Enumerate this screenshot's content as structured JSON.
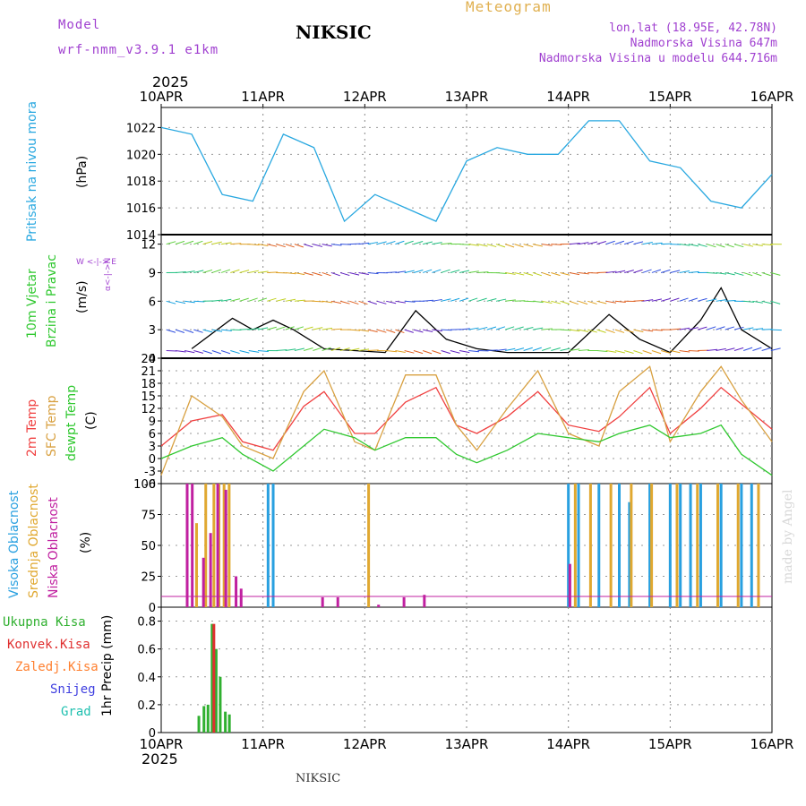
{
  "header": {
    "model_label": "Model",
    "model_value": "wrf-nmm_v3.9.1 e1km",
    "title": "NIKSIC",
    "subtitle": "Meteogram",
    "coords": "lon,lat (18.95E, 42.78N)",
    "elevation": "Nadmorska Visina 647m",
    "model_elevation": "Nadmorska Visina u modelu 644.716m",
    "year_top": "2025",
    "year_bottom": "2025",
    "footer_station": "NIKSIC",
    "watermark": "made by Angel"
  },
  "time_axis": {
    "labels": [
      "10APR",
      "11APR",
      "12APR",
      "13APR",
      "14APR",
      "15APR",
      "16APR"
    ]
  },
  "panel_labels": {
    "pressure": {
      "name": "Pritisak na nivou mora",
      "unit": "(hPa)"
    },
    "wind": {
      "name1": "10m Vjetar",
      "name2": "Brzina i Pravac",
      "unit": "(m/s)",
      "compass_ns": "α<-|->N",
      "compass_we": "W <-|-> E"
    },
    "temp": {
      "t2m": "2m Temp",
      "sfc": "SFC Temp",
      "dew": "dewpt Temp",
      "unit": "(C)"
    },
    "cloud": {
      "high": "Visoka Oblacnost",
      "mid": "Srednja Oblacnost",
      "low": "Niska Oblacnost",
      "unit": "(%)"
    },
    "precip": {
      "total": "Ukupna Kisa",
      "conv": "Konvek.Kisa",
      "frozen": "Zaledj.Kisa",
      "snow": "Snijeg",
      "hail": "Grad",
      "unit": "1hr Precip (mm)"
    }
  },
  "colors": {
    "pressure": "#29a8e0",
    "t2m": "#f04040",
    "sfc": "#d8a040",
    "dew": "#30c830",
    "cloud_high": "#29a0e0",
    "cloud_mid": "#e0a830",
    "cloud_low": "#c020a0",
    "precip_total": "#30b030",
    "precip_conv": "#e03030",
    "precip_frozen": "#ff8030",
    "precip_snow": "#4040e0",
    "precip_hail": "#20c0b0",
    "title_sub": "#e0b050",
    "meta": "#a040d0"
  },
  "chart_data": [
    {
      "type": "line",
      "panel": "pressure",
      "xlabel": "",
      "ylabel": "(hPa)",
      "ylim": [
        1014,
        1023.5
      ],
      "yticks": [
        1014,
        1016,
        1018,
        1020,
        1022
      ],
      "series": [
        {
          "name": "Pritisak na nivou mora",
          "x": [
            0,
            0.3,
            0.6,
            0.9,
            1.2,
            1.5,
            1.8,
            2.1,
            2.4,
            2.7,
            3.0,
            3.3,
            3.6,
            3.9,
            4.2,
            4.5,
            4.8,
            5.1,
            5.4,
            5.7,
            6.0
          ],
          "values": [
            1022,
            1021.5,
            1017,
            1016.5,
            1021.5,
            1020.5,
            1015,
            1017,
            1016,
            1015,
            1019.5,
            1020.5,
            1020,
            1020,
            1022.5,
            1022.5,
            1019.5,
            1019,
            1016.5,
            1016,
            1018.5
          ]
        }
      ]
    },
    {
      "type": "line",
      "panel": "wind",
      "ylabel": "(m/s)",
      "ylim": [
        0,
        13
      ],
      "yticks": [
        0,
        3,
        6,
        9,
        12
      ],
      "series": [
        {
          "name": "wind speed",
          "x": [
            0.3,
            0.7,
            0.9,
            1.1,
            1.3,
            1.6,
            1.9,
            2.2,
            2.5,
            2.8,
            3.1,
            3.4,
            3.7,
            4.0,
            4.4,
            4.7,
            5.0,
            5.3,
            5.5,
            5.7,
            6.0
          ],
          "values": [
            1,
            4.2,
            3,
            4,
            3,
            1,
            0.8,
            0.6,
            5,
            2,
            1,
            0.6,
            0.6,
            0.6,
            4.6,
            2,
            0.6,
            4,
            7.4,
            3,
            1
          ]
        }
      ]
    },
    {
      "type": "line",
      "panel": "temperature",
      "ylabel": "(C)",
      "ylim": [
        -6,
        24
      ],
      "yticks": [
        -6,
        -3,
        0,
        3,
        6,
        9,
        12,
        15,
        18,
        21,
        24
      ],
      "x": [
        0,
        0.3,
        0.6,
        0.8,
        1.1,
        1.4,
        1.6,
        1.9,
        2.1,
        2.4,
        2.7,
        2.9,
        3.1,
        3.4,
        3.7,
        4.0,
        4.3,
        4.5,
        4.8,
        5.0,
        5.3,
        5.5,
        5.7,
        6.0
      ],
      "series": [
        {
          "name": "2m Temp",
          "values": [
            3,
            9,
            10.5,
            4,
            2,
            12.5,
            16,
            6,
            6,
            13.5,
            17,
            8,
            6,
            10,
            16,
            8,
            6.5,
            10,
            17,
            6,
            12,
            17,
            13,
            7
          ]
        },
        {
          "name": "SFC Temp",
          "values": [
            -4,
            15,
            10,
            3,
            0,
            16,
            21,
            4,
            2,
            20,
            20,
            8,
            2,
            12,
            21,
            6,
            3,
            16,
            22,
            4,
            16,
            22,
            14,
            4
          ]
        },
        {
          "name": "dewpt Temp",
          "values": [
            0,
            3,
            5,
            1,
            -3,
            3,
            7,
            5,
            2,
            5,
            5,
            1,
            -1,
            2,
            6,
            5,
            4,
            6,
            8,
            5,
            6,
            8,
            1,
            -4
          ]
        }
      ]
    },
    {
      "type": "bar",
      "panel": "cloud",
      "ylabel": "(%)",
      "ylim": [
        0,
        100
      ],
      "yticks": [
        0,
        25,
        50,
        75,
        100
      ],
      "series": [
        {
          "name": "Visoka Oblacnost",
          "x": [
            1.05,
            1.1,
            4.0,
            4.1,
            4.3,
            4.5,
            4.6,
            4.8,
            5.0,
            5.1,
            5.2,
            5.3,
            5.5,
            5.7,
            5.8
          ],
          "values": [
            100,
            100,
            100,
            100,
            100,
            100,
            85,
            100,
            100,
            100,
            100,
            100,
            100,
            100,
            100
          ]
        },
        {
          "name": "Srednja Oblacnost",
          "x": [
            0.33,
            0.42,
            0.5,
            0.55,
            0.6,
            0.65,
            2.02,
            4.05,
            4.2,
            4.4,
            4.6,
            4.8,
            5.05,
            5.25,
            5.45,
            5.65,
            5.85
          ],
          "values": [
            68,
            100,
            100,
            100,
            100,
            100,
            100,
            100,
            100,
            100,
            100,
            100,
            100,
            100,
            100,
            100,
            100
          ]
        },
        {
          "name": "Niska Oblacnost",
          "x": [
            0.22,
            0.27,
            0.38,
            0.45,
            0.52,
            0.6,
            0.7,
            0.75,
            1.55,
            1.7,
            2.1,
            2.35,
            2.55,
            3.98
          ],
          "values": [
            100,
            100,
            40,
            60,
            100,
            95,
            25,
            15,
            8,
            8,
            2,
            8,
            10,
            35
          ]
        }
      ]
    },
    {
      "type": "bar",
      "panel": "precipitation",
      "ylabel": "1hr Precip (mm)",
      "ylim": [
        0,
        0.9
      ],
      "yticks": [
        0,
        0.2,
        0.4,
        0.6,
        0.8
      ],
      "series": [
        {
          "name": "Ukupna Kisa",
          "x": [
            0.37,
            0.42,
            0.46,
            0.5,
            0.54,
            0.58,
            0.63,
            0.67
          ],
          "values": [
            0.12,
            0.19,
            0.2,
            0.78,
            0.6,
            0.4,
            0.15,
            0.13
          ]
        },
        {
          "name": "Konvek.Kisa",
          "x": [
            0.5
          ],
          "values": [
            0.78
          ]
        }
      ]
    }
  ]
}
